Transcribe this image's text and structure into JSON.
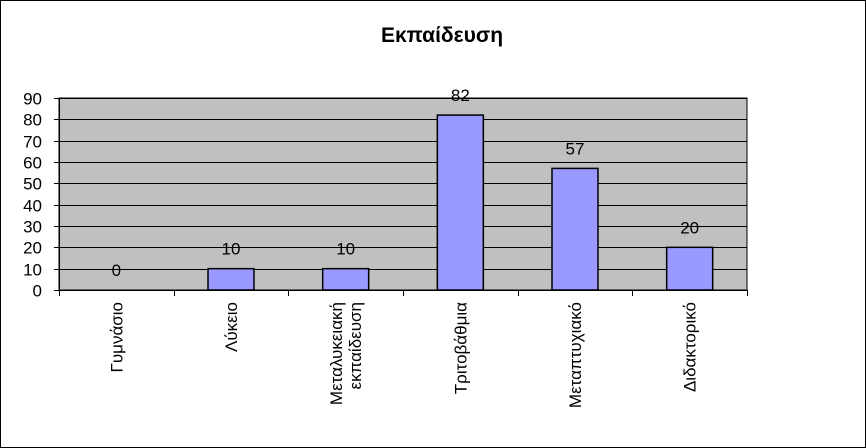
{
  "chart_data": {
    "type": "bar",
    "title": "Εκπαίδευση",
    "categories": [
      [
        "Γυμνάσιο"
      ],
      [
        "Λύκειο"
      ],
      [
        "Μεταλυκειακή",
        "εκπαίδευση"
      ],
      [
        "Τριτοβάθμια"
      ],
      [
        "Μεταπτυχιακό"
      ],
      [
        "Διδακτορικό"
      ]
    ],
    "values": [
      0,
      10,
      10,
      82,
      57,
      20
    ],
    "data_labels": [
      "0",
      "10",
      "10",
      "82",
      "57",
      "20"
    ],
    "ylim": [
      0,
      90
    ],
    "yticks": [
      0,
      10,
      20,
      30,
      40,
      50,
      60,
      70,
      80,
      90
    ],
    "grid": true,
    "legend": "none",
    "colors": {
      "bar_fill": "#9999ff",
      "plot_background": "#c0c0c0",
      "gridline": "#000000",
      "outline": "#000000"
    }
  }
}
